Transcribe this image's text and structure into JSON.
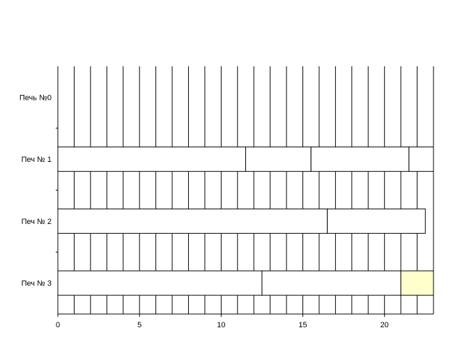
{
  "chart_data": {
    "type": "gantt",
    "title": "",
    "xlabel": "",
    "ylabel": "",
    "xlim": [
      0,
      23
    ],
    "xticks": [
      0,
      5,
      10,
      15,
      20
    ],
    "grid": "vertical lines at each integer",
    "categories": [
      "Печь №0",
      "Печ № 1",
      "Печ № 2",
      "Печ № 3"
    ],
    "tasks": [
      {
        "row": 1,
        "start": 0,
        "end": 11.5,
        "color": "#ffffff"
      },
      {
        "row": 1,
        "start": 11.5,
        "end": 15.5,
        "color": "#ffffff"
      },
      {
        "row": 1,
        "start": 15.5,
        "end": 21.5,
        "color": "#ffffff"
      },
      {
        "row": 1,
        "start": 21.5,
        "end": 23,
        "color": "#ffffff"
      },
      {
        "row": 2,
        "start": 0,
        "end": 16.5,
        "color": "#ffffff"
      },
      {
        "row": 2,
        "start": 16.5,
        "end": 22.5,
        "color": "#ffffff"
      },
      {
        "row": 3,
        "start": 0,
        "end": 12.5,
        "color": "#ffffff"
      },
      {
        "row": 3,
        "start": 12.5,
        "end": 21,
        "color": "#ffffff"
      },
      {
        "row": 3,
        "start": 21,
        "end": 23,
        "color": "#ffffcc"
      }
    ]
  }
}
